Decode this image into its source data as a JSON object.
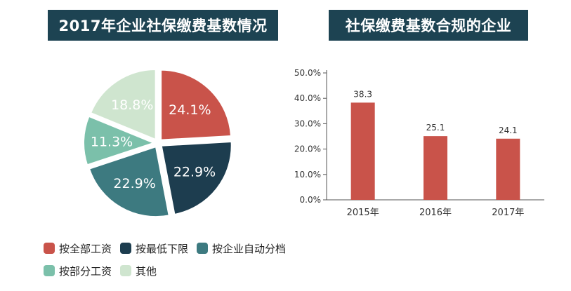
{
  "left_title": "2017年企业社保缴费基数情况",
  "right_title": "社保缴费基数合规的企业",
  "chart_data": [
    {
      "type": "pie",
      "title": "2017年企业社保缴费基数情况",
      "slices": [
        {
          "label": "按全部工资",
          "value": 24.1,
          "display": "24.1%",
          "color": "#c9534a"
        },
        {
          "label": "按最低下限",
          "value": 22.9,
          "display": "22.9%",
          "color": "#1d3d4f"
        },
        {
          "label": "按企业自动分档",
          "value": 22.9,
          "display": "22.9%",
          "color": "#3d7a80"
        },
        {
          "label": "按部分工资",
          "value": 11.3,
          "display": "11.3%",
          "color": "#7bc0aa"
        },
        {
          "label": "其他",
          "value": 18.8,
          "display": "18.8%",
          "color": "#cfe5cf"
        }
      ],
      "legend_placement": "bottom"
    },
    {
      "type": "bar",
      "title": "社保缴费基数合规的企业",
      "categories": [
        "2015年",
        "2016年",
        "2017年"
      ],
      "values": [
        38.3,
        25.1,
        24.1
      ],
      "value_labels": [
        "38.3",
        "25.1",
        "24.1"
      ],
      "ylim": [
        0,
        50
      ],
      "yticks": [
        "0.0%",
        "10.0%",
        "20.0%",
        "30.0%",
        "40.0%",
        "50.0%"
      ],
      "ytick_values": [
        0,
        10,
        20,
        30,
        40,
        50
      ],
      "bar_color": "#c9534a",
      "grid": false
    }
  ]
}
